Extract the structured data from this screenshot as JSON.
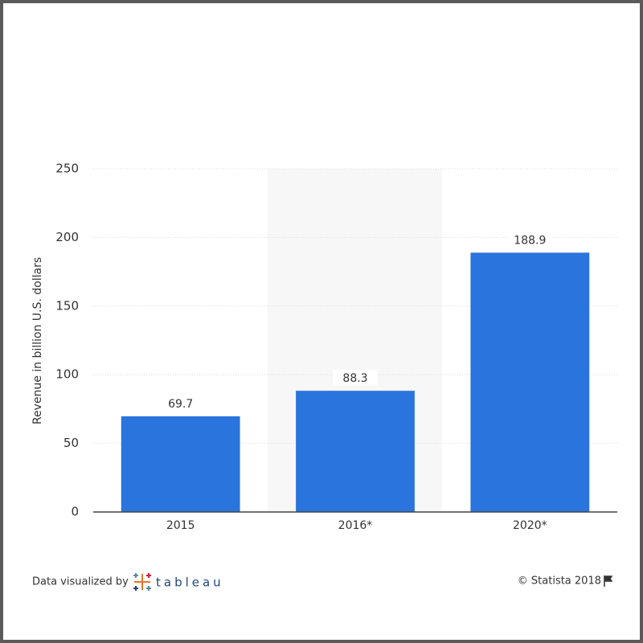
{
  "chart_data": {
    "type": "bar",
    "y_label": "Revenue in billion U.S. dollars",
    "categories": [
      "2015",
      "2016*",
      "2020*"
    ],
    "values": [
      69.7,
      88.3,
      188.9
    ],
    "color": "#2a74dd",
    "ylim": [
      0,
      250
    ],
    "yticks": [
      0,
      50,
      100,
      150,
      200,
      250
    ],
    "grid": true,
    "credit": "Data visualized by",
    "logo": "tableau",
    "source": "© Statista 2018"
  }
}
